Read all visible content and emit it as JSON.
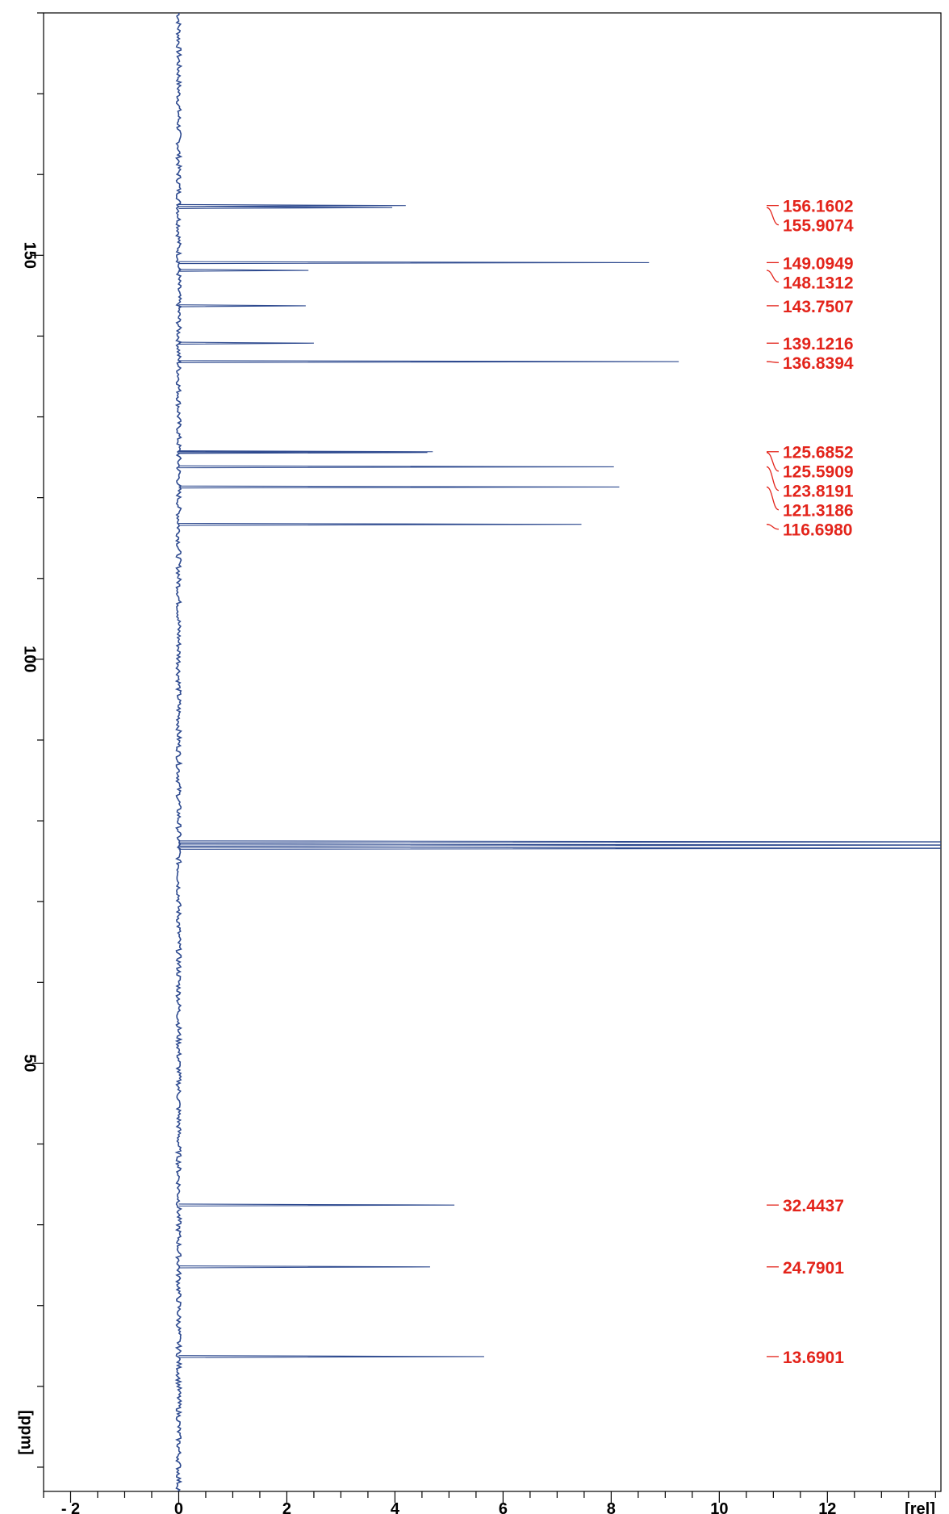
{
  "chart_data": {
    "type": "line",
    "title": "",
    "xlabel": "[rel]",
    "ylabel": "[ppm]",
    "orientation": "vertical-spectrum",
    "xlim": [
      -2.5,
      14.1
    ],
    "ylim": [
      -3,
      180
    ],
    "y_reversed": false,
    "x_ticks": [
      {
        "value": -2,
        "label": "- 2"
      },
      {
        "value": 0,
        "label": "0"
      },
      {
        "value": 2,
        "label": "2"
      },
      {
        "value": 4,
        "label": "4"
      },
      {
        "value": 6,
        "label": "6"
      },
      {
        "value": 8,
        "label": "8"
      },
      {
        "value": 10,
        "label": "10"
      },
      {
        "value": 12,
        "label": "12"
      }
    ],
    "x_minor_step": 0.5,
    "y_ticks": [
      {
        "value": 150,
        "label": "150"
      },
      {
        "value": 100,
        "label": "100"
      },
      {
        "value": 50,
        "label": "50"
      }
    ],
    "y_minor_step": 10,
    "grid": false,
    "line_color": "#2e4a8f",
    "label_color": "#e3241b",
    "baseline": 0,
    "peaks": [
      {
        "ppm": 156.1602,
        "intensity": 4.2
      },
      {
        "ppm": 155.9074,
        "intensity": 3.95
      },
      {
        "ppm": 149.0949,
        "intensity": 8.7
      },
      {
        "ppm": 148.1312,
        "intensity": 2.4
      },
      {
        "ppm": 143.7507,
        "intensity": 2.35
      },
      {
        "ppm": 139.1216,
        "intensity": 2.5
      },
      {
        "ppm": 136.8394,
        "intensity": 9.25
      },
      {
        "ppm": 125.6852,
        "intensity": 4.7
      },
      {
        "ppm": 125.5909,
        "intensity": 4.6
      },
      {
        "ppm": 123.8191,
        "intensity": 8.05
      },
      {
        "ppm": 121.3186,
        "intensity": 8.15
      },
      {
        "ppm": 116.698,
        "intensity": 7.45
      },
      {
        "ppm": 77.4,
        "intensity": 16
      },
      {
        "ppm": 77.0,
        "intensity": 16
      },
      {
        "ppm": 76.6,
        "intensity": 16
      },
      {
        "ppm": 32.4437,
        "intensity": 5.1
      },
      {
        "ppm": 24.7901,
        "intensity": 4.65
      },
      {
        "ppm": 13.6901,
        "intensity": 5.65
      }
    ],
    "annotations": [
      {
        "label": "156.1602",
        "ppm": 156.1602
      },
      {
        "label": "155.9074",
        "ppm": 155.9074
      },
      {
        "label": "149.0949",
        "ppm": 149.0949
      },
      {
        "label": "148.1312",
        "ppm": 148.1312
      },
      {
        "label": "143.7507",
        "ppm": 143.7507
      },
      {
        "label": "139.1216",
        "ppm": 139.1216
      },
      {
        "label": "136.8394",
        "ppm": 136.8394
      },
      {
        "label": "125.6852",
        "ppm": 125.6852
      },
      {
        "label": "125.5909",
        "ppm": 125.5909
      },
      {
        "label": "123.8191",
        "ppm": 123.8191
      },
      {
        "label": "121.3186",
        "ppm": 121.3186
      },
      {
        "label": "116.6980",
        "ppm": 116.698
      },
      {
        "label": "32.4437",
        "ppm": 32.4437
      },
      {
        "label": "24.7901",
        "ppm": 24.7901
      },
      {
        "label": "13.6901",
        "ppm": 13.6901
      }
    ]
  }
}
